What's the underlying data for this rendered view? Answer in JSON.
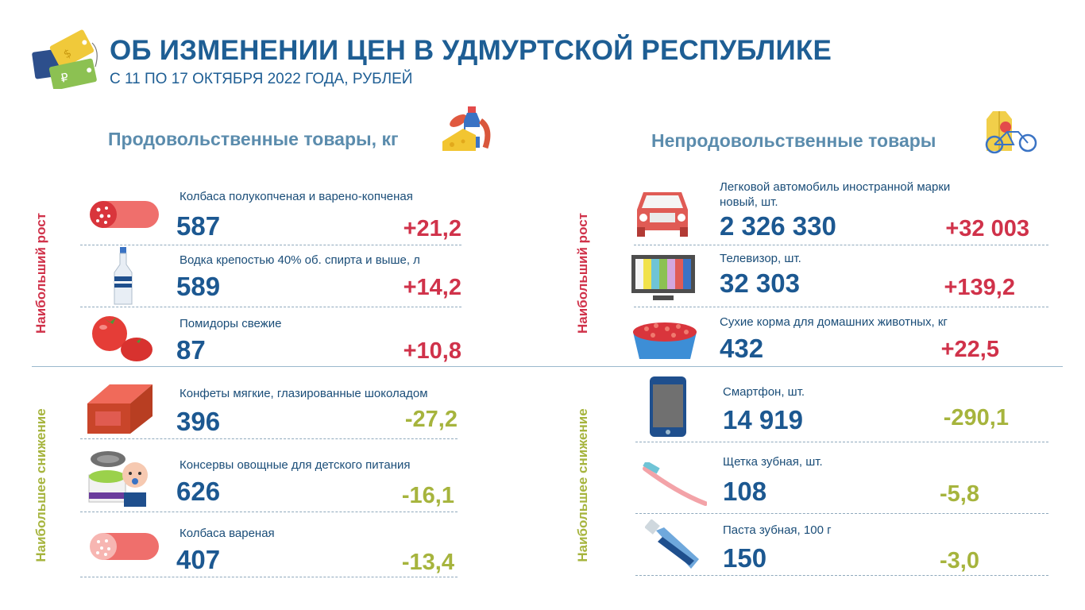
{
  "header": {
    "title": "ОБ ИЗМЕНЕНИИ ЦЕН В УДМУРТСКОЙ РЕСПУБЛИКЕ",
    "subtitle": "С 11 ПО 17 ОКТЯБРЯ 2022 ГОДА, РУБЛЕЙ"
  },
  "food": {
    "title": "Продовольственные товары, кг",
    "growth_label": "Наибольший рост",
    "decline_label": "Наибольшее снижение",
    "growth": [
      {
        "name": "Колбаса полукопченая  и варено-копченая",
        "price": "587",
        "change": "+21,2",
        "icon": "sausage-icon"
      },
      {
        "name": "Водка крепостью 40% об. спирта и выше, л",
        "price": "589",
        "change": "+14,2",
        "icon": "vodka-bottle-icon"
      },
      {
        "name": "Помидоры свежие",
        "price": "87",
        "change": "+10,8",
        "icon": "tomatoes-icon"
      }
    ],
    "decline": [
      {
        "name": "Конфеты мягкие, глазированные  шоколадом",
        "price": "396",
        "change": "-27,2",
        "icon": "candy-bar-icon"
      },
      {
        "name": "Консервы овощные для детского питания",
        "price": "626",
        "change": "-16,1",
        "icon": "baby-food-can-icon"
      },
      {
        "name": "Колбаса вареная",
        "price": "407",
        "change": "-13,4",
        "icon": "boiled-sausage-icon"
      }
    ]
  },
  "nonfood": {
    "title": "Непродовольственные товары",
    "growth_label": "Наибольший рост",
    "decline_label": "Наибольшее снижение",
    "growth": [
      {
        "name": "Легковой автомобиль иностранной марки",
        "name2": "новый, шт.",
        "price": "2 326 330",
        "change": "+32 003",
        "icon": "car-icon"
      },
      {
        "name": "Телевизор, шт.",
        "price": "32 303",
        "change": "+139,2",
        "icon": "tv-icon"
      },
      {
        "name": "Сухие корма для домашних животных, кг",
        "price": "432",
        "change": "+22,5",
        "icon": "pet-food-bowl-icon"
      }
    ],
    "decline": [
      {
        "name": "Смартфон, шт.",
        "price": "14 919",
        "change": "-290,1",
        "icon": "smartphone-icon"
      },
      {
        "name": "Щетка зубная, шт.",
        "price": "108",
        "change": "-5,8",
        "icon": "toothbrush-icon"
      },
      {
        "name": "Паста зубная, 100 г",
        "price": "150",
        "change": "-3,0",
        "icon": "toothpaste-icon"
      }
    ]
  }
}
